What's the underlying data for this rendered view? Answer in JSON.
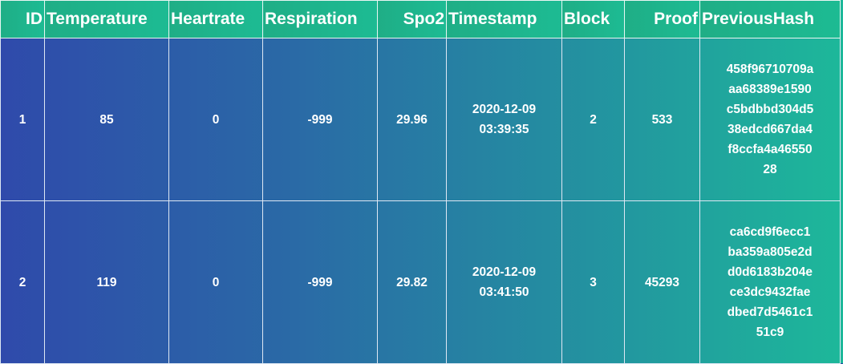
{
  "table": {
    "columns": [
      "ID",
      "Temperature",
      "Heartrate",
      "Respiration",
      "Spo2",
      "Timestamp",
      "Block",
      "Proof",
      "PreviousHash"
    ],
    "rows": [
      [
        "1",
        "85",
        "0",
        "-999",
        "29.96",
        "2020-12-09 03:39:35",
        "2",
        "533",
        [
          "458f96710709a",
          "aa68389e1590",
          "c5bdbbd304d5",
          "38edcd667da4",
          "f8ccfa4a46550",
          "28"
        ]
      ],
      [
        "2",
        "119",
        "0",
        "-999",
        "29.82",
        "2020-12-09 03:41:50",
        "3",
        "45293",
        [
          "ca6cd9f6ecc1",
          "ba359a805e2d",
          "d0d6183b204e",
          "ce3dc9432fae",
          "dbed7d5461c1",
          "51c9"
        ]
      ]
    ]
  }
}
